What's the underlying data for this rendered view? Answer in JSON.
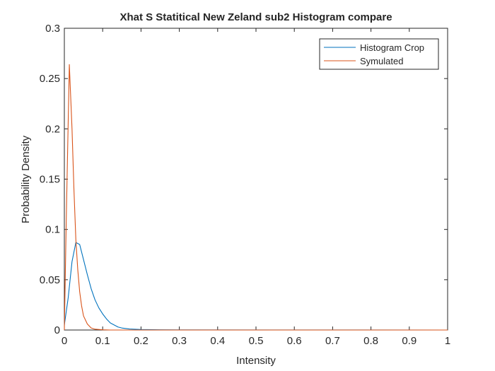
{
  "chart_data": {
    "type": "line",
    "title": "Xhat S Statitical New Zeland sub2  Histogram compare",
    "xlabel": "Intensity",
    "ylabel": "Probability Density",
    "xlim": [
      0,
      1
    ],
    "ylim": [
      0,
      0.3
    ],
    "xticks": [
      "0",
      "0.1",
      "0.2",
      "0.3",
      "0.4",
      "0.5",
      "0.6",
      "0.7",
      "0.8",
      "0.9",
      "1"
    ],
    "yticks": [
      "0",
      "0.05",
      "0.1",
      "0.15",
      "0.2",
      "0.25",
      "0.3"
    ],
    "grid": false,
    "legend_position": "top-right",
    "series": [
      {
        "name": "Histogram Crop",
        "color": "#0072BD",
        "points": [
          [
            0,
            0.005
          ],
          [
            0.01,
            0.032
          ],
          [
            0.02,
            0.068
          ],
          [
            0.03,
            0.087
          ],
          [
            0.04,
            0.085
          ],
          [
            0.05,
            0.07
          ],
          [
            0.06,
            0.055
          ],
          [
            0.07,
            0.041
          ],
          [
            0.08,
            0.03
          ],
          [
            0.09,
            0.022
          ],
          [
            0.1,
            0.016
          ],
          [
            0.11,
            0.011
          ],
          [
            0.12,
            0.007
          ],
          [
            0.13,
            0.005
          ],
          [
            0.14,
            0.003
          ],
          [
            0.15,
            0.002
          ],
          [
            0.17,
            0.001
          ],
          [
            0.2,
            0.0005
          ],
          [
            0.25,
            0.0002
          ],
          [
            0.3,
            0.0001
          ],
          [
            1,
            0
          ]
        ]
      },
      {
        "name": "Symulated",
        "color": "#D95319",
        "points": [
          [
            0,
            0.0
          ],
          [
            0.005,
            0.11
          ],
          [
            0.013,
            0.264
          ],
          [
            0.02,
            0.2
          ],
          [
            0.025,
            0.14
          ],
          [
            0.03,
            0.09
          ],
          [
            0.035,
            0.06
          ],
          [
            0.04,
            0.038
          ],
          [
            0.045,
            0.024
          ],
          [
            0.05,
            0.014
          ],
          [
            0.06,
            0.006
          ],
          [
            0.07,
            0.002
          ],
          [
            0.08,
            0.0008
          ],
          [
            0.1,
            0.0002
          ],
          [
            0.12,
            0.0
          ],
          [
            1,
            0
          ]
        ]
      }
    ]
  }
}
